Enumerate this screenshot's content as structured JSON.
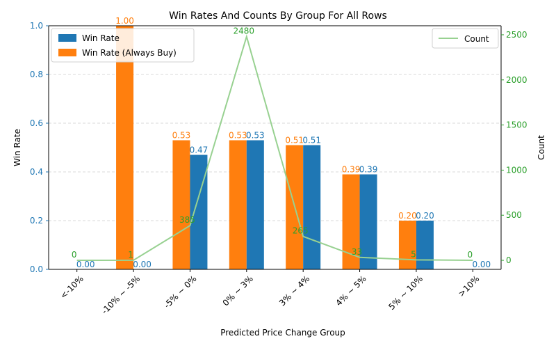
{
  "chart_data": {
    "type": "bar",
    "title": "Win Rates And Counts By Group For All Rows",
    "xlabel": "Predicted Price Change Group",
    "ylabel": "Win Rate",
    "y2label": "Count",
    "categories": [
      "<-10%",
      "-10% ~ -5%",
      "-5% ~ 0%",
      "0% ~ 3%",
      "3% ~ 4%",
      "4% ~ 5%",
      "5% ~ 10%",
      ">10%"
    ],
    "ylim": [
      0,
      1.0
    ],
    "yticks": [
      0.0,
      0.2,
      0.4,
      0.6,
      0.8,
      1.0
    ],
    "y2lim": [
      -100,
      2600
    ],
    "y2ticks": [
      0,
      500,
      1000,
      1500,
      2000,
      2500
    ],
    "grid": "horizontal dashed",
    "series": [
      {
        "name": "Win Rate",
        "kind": "bar",
        "color": "#1f77b4",
        "values": [
          0.0,
          0.0,
          0.47,
          0.53,
          0.51,
          0.39,
          0.2,
          0.0
        ],
        "labels": [
          "0.00",
          "0.00",
          "0.47",
          "0.53",
          "0.51",
          "0.39",
          "0.20",
          "0.00"
        ]
      },
      {
        "name": "Win Rate (Always Buy)",
        "kind": "bar",
        "color": "#ff7f0e",
        "values": [
          0.0,
          1.0,
          0.53,
          0.53,
          0.51,
          0.39,
          0.2,
          0.0
        ],
        "labels": [
          "",
          "1.00",
          "0.53",
          "0.53",
          "0.51",
          "0.39",
          "0.20",
          ""
        ]
      },
      {
        "name": "Count",
        "kind": "line",
        "axis": "right",
        "color": "#98d191",
        "label_color": "#2ca02c",
        "values": [
          0,
          1,
          385,
          2480,
          265,
          33,
          5,
          0
        ],
        "labels": [
          "0",
          "1",
          "385",
          "2480",
          "265",
          "33",
          "5",
          "0"
        ]
      }
    ],
    "legends": [
      {
        "placement": "upper-left",
        "entries": [
          "Win Rate",
          "Win Rate (Always Buy)"
        ]
      },
      {
        "placement": "upper-right",
        "entries": [
          "Count"
        ]
      }
    ]
  }
}
